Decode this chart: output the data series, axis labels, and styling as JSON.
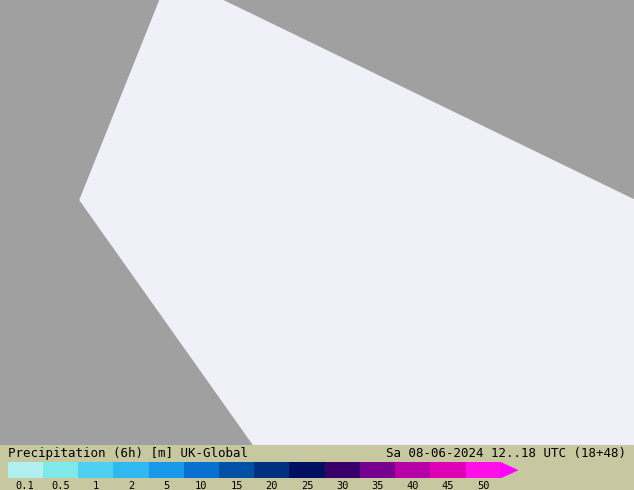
{
  "title_left": "Precipitation (6h) [m] UK-Global",
  "title_right": "Sa 08-06-2024 12..18 UTC (18+48)",
  "colorbar_values": [
    "0.1",
    "0.5",
    "1",
    "2",
    "5",
    "10",
    "15",
    "20",
    "25",
    "30",
    "35",
    "40",
    "45",
    "50"
  ],
  "colorbar_colors": [
    "#b0f0f0",
    "#80e8e8",
    "#50d0f0",
    "#30b8f0",
    "#1898e8",
    "#0870d0",
    "#0050a8",
    "#003080",
    "#001060",
    "#380068",
    "#780090",
    "#b800a8",
    "#e000b8",
    "#ff10e8"
  ],
  "bg_color": "#c8c8a0",
  "bottom_bg": "#ffffff",
  "font_size_title": 9,
  "font_size_ticks": 8,
  "colorbar_arrow_color": "#ff00ff",
  "map_colors": {
    "land": "#c8c8a0",
    "sea_outside": "#a0a0a0",
    "forecast_area": "#f0f0f8",
    "green_area": "#d0f0a0"
  },
  "figsize": [
    6.34,
    4.9
  ],
  "dpi": 100
}
